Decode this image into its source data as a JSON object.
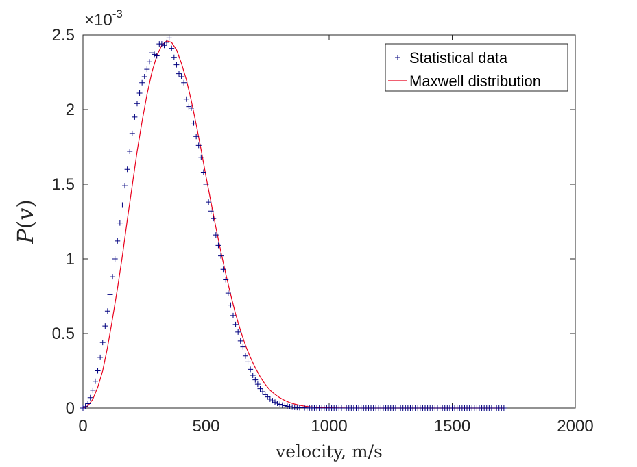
{
  "chart_data": {
    "type": "line",
    "xlabel": "velocity, m/s",
    "ylabel": "P(v)",
    "ylabel_parts": {
      "func": "P",
      "open": "(",
      "var": "v",
      "close": ")"
    },
    "exponent_label": {
      "base": "×10",
      "exp": "-3"
    },
    "xlim": [
      0,
      2000
    ],
    "ylim": [
      0,
      2.5
    ],
    "x_ticks": [
      0,
      500,
      1000,
      1500,
      2000
    ],
    "x_tick_labels": [
      "0",
      "500",
      "1000",
      "1500",
      "2000"
    ],
    "y_ticks": [
      0,
      0.5,
      1,
      1.5,
      2,
      2.5
    ],
    "y_tick_labels": [
      "0",
      "0.5",
      "1",
      "1.5",
      "2",
      "2.5"
    ],
    "grid": false,
    "legend_position": "top-right",
    "colors": {
      "statistical": "#00007f",
      "maxwell": "#e8001c",
      "axis": "#262626"
    },
    "series": [
      {
        "name": "Statistical data",
        "style": "markers",
        "marker": "+",
        "x": [
          0,
          10,
          20,
          30,
          40,
          50,
          60,
          70,
          80,
          90,
          100,
          110,
          120,
          130,
          140,
          150,
          160,
          170,
          180,
          190,
          200,
          210,
          220,
          230,
          240,
          250,
          260,
          270,
          280,
          290,
          300,
          310,
          320,
          330,
          340,
          350,
          360,
          370,
          380,
          390,
          400,
          410,
          420,
          430,
          440,
          450,
          460,
          470,
          480,
          490,
          500,
          510,
          520,
          530,
          540,
          550,
          560,
          570,
          580,
          590,
          600,
          610,
          620,
          630,
          640,
          650,
          660,
          670,
          680,
          690,
          700,
          710,
          720,
          730,
          740,
          750,
          760,
          770,
          780,
          790,
          800,
          810,
          820,
          830,
          840,
          850,
          860,
          870,
          880,
          890,
          900,
          910,
          920,
          930,
          940,
          950,
          960,
          970,
          980,
          990,
          1000,
          1010,
          1020,
          1030,
          1040,
          1050,
          1060,
          1070,
          1080,
          1090,
          1100,
          1110,
          1120,
          1130,
          1140,
          1150,
          1160,
          1170,
          1180,
          1190,
          1200,
          1210,
          1220,
          1230,
          1240,
          1250,
          1260,
          1270,
          1280,
          1290,
          1300,
          1310,
          1320,
          1330,
          1340,
          1350,
          1360,
          1370,
          1380,
          1390,
          1400,
          1410,
          1420,
          1430,
          1440,
          1450,
          1460,
          1470,
          1480,
          1490,
          1500,
          1510,
          1520,
          1530,
          1540,
          1550,
          1560,
          1570,
          1580,
          1590,
          1600,
          1610,
          1620,
          1630,
          1640,
          1650,
          1660,
          1670,
          1680,
          1690,
          1700,
          1710
        ],
        "y": [
          0,
          0.01,
          0.03,
          0.07,
          0.12,
          0.18,
          0.25,
          0.34,
          0.44,
          0.55,
          0.65,
          0.76,
          0.88,
          1.0,
          1.12,
          1.24,
          1.36,
          1.49,
          1.6,
          1.72,
          1.84,
          1.95,
          2.04,
          2.11,
          2.18,
          2.22,
          2.27,
          2.32,
          2.38,
          2.37,
          2.36,
          2.44,
          2.44,
          2.43,
          2.45,
          2.48,
          2.41,
          2.35,
          2.3,
          2.24,
          2.22,
          2.18,
          2.07,
          2.02,
          2.01,
          1.91,
          1.82,
          1.76,
          1.68,
          1.58,
          1.5,
          1.38,
          1.32,
          1.27,
          1.16,
          1.09,
          1.02,
          0.93,
          0.86,
          0.77,
          0.69,
          0.62,
          0.56,
          0.51,
          0.45,
          0.41,
          0.35,
          0.31,
          0.26,
          0.22,
          0.19,
          0.16,
          0.13,
          0.11,
          0.09,
          0.075,
          0.06,
          0.05,
          0.04,
          0.032,
          0.025,
          0.02,
          0.016,
          0.012,
          0.009,
          0.007,
          0.005,
          0.004,
          0.003,
          0.002,
          0.0015,
          0.001,
          0.0008,
          0.0006,
          0.0004,
          0.0003,
          0.0002,
          0.0001,
          0.0001,
          0,
          0,
          0,
          0,
          0,
          0,
          0,
          0,
          0,
          0,
          0,
          0,
          0,
          0,
          0,
          0,
          0,
          0,
          0,
          0,
          0,
          0,
          0,
          0,
          0,
          0,
          0,
          0,
          0,
          0,
          0,
          0,
          0,
          0,
          0,
          0,
          0,
          0,
          0,
          0,
          0,
          0,
          0,
          0,
          0,
          0,
          0,
          0,
          0,
          0,
          0,
          0,
          0,
          0,
          0,
          0,
          0,
          0,
          0,
          0,
          0,
          0,
          0,
          0,
          0,
          0,
          0,
          0,
          0,
          0,
          0,
          0,
          0
        ]
      },
      {
        "name": "Maxwell distribution",
        "style": "line",
        "x": [
          0,
          20,
          40,
          60,
          80,
          100,
          120,
          140,
          160,
          180,
          200,
          220,
          240,
          260,
          280,
          300,
          320,
          340,
          360,
          380,
          400,
          420,
          440,
          460,
          480,
          500,
          520,
          540,
          560,
          580,
          600,
          620,
          640,
          660,
          680,
          700,
          720,
          740,
          760,
          780,
          800,
          820,
          840,
          860,
          880,
          900,
          920,
          940,
          960,
          980,
          1000,
          1020,
          1040,
          1060,
          1080,
          1100,
          1150,
          1200,
          1300,
          1400,
          1500,
          1600,
          1710
        ],
        "y": [
          0,
          0.015,
          0.06,
          0.14,
          0.25,
          0.41,
          0.6,
          0.8,
          1.02,
          1.26,
          1.49,
          1.72,
          1.92,
          2.1,
          2.25,
          2.36,
          2.43,
          2.46,
          2.45,
          2.4,
          2.31,
          2.2,
          2.06,
          1.9,
          1.73,
          1.55,
          1.38,
          1.21,
          1.05,
          0.9,
          0.76,
          0.63,
          0.52,
          0.42,
          0.34,
          0.27,
          0.21,
          0.16,
          0.12,
          0.092,
          0.069,
          0.051,
          0.037,
          0.027,
          0.019,
          0.013,
          0.009,
          0.006,
          0.004,
          0.003,
          0.002,
          0.0013,
          0.0008,
          0.0005,
          0.0003,
          0.0002,
          0,
          0,
          0,
          0,
          0,
          0,
          0
        ]
      }
    ]
  }
}
